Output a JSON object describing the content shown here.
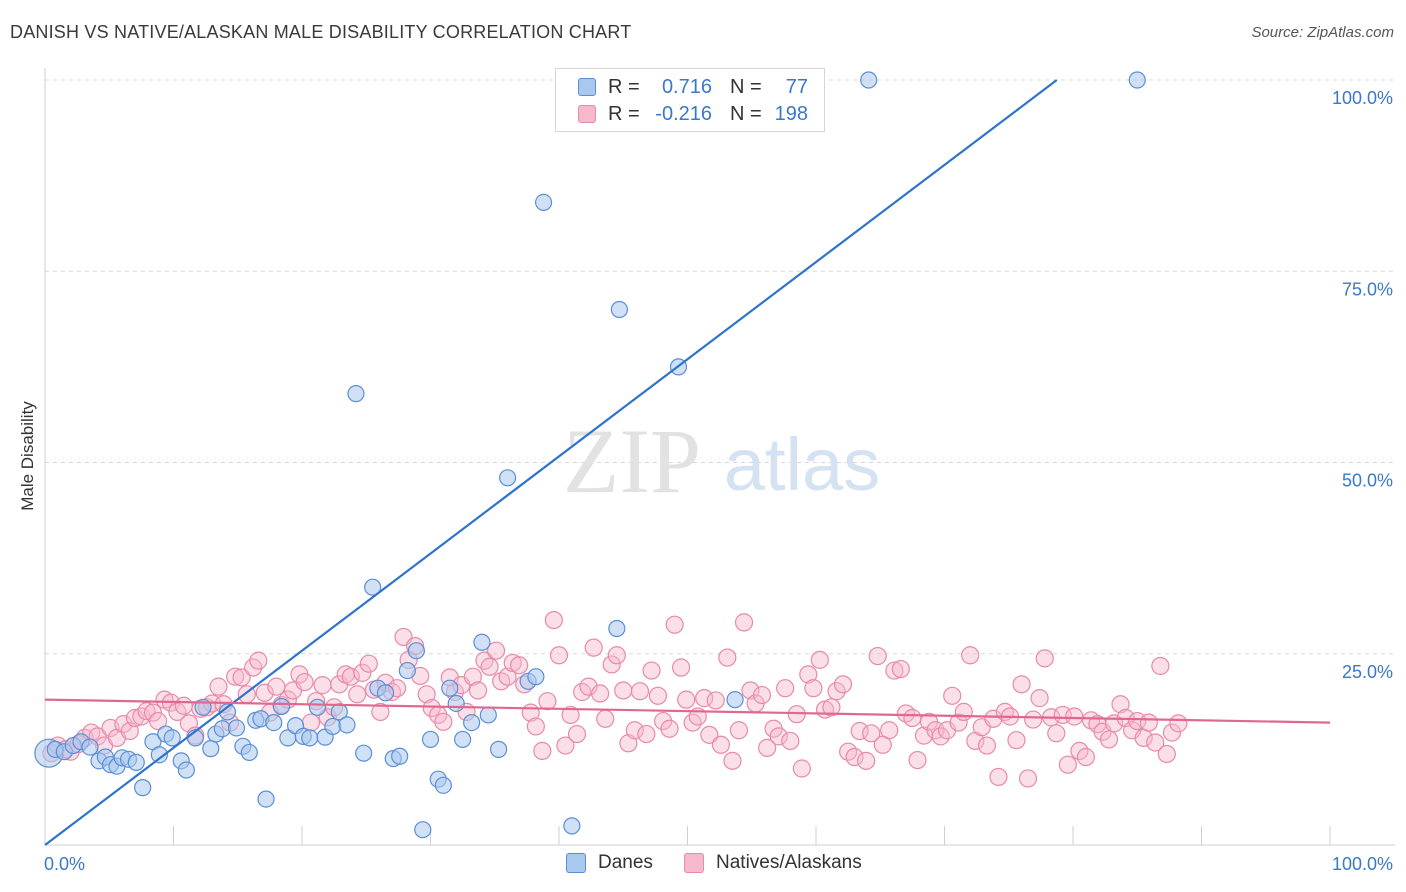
{
  "title": "DANISH VS NATIVE/ALASKAN MALE DISABILITY CORRELATION CHART",
  "source": "Source: ZipAtlas.com",
  "watermark": {
    "zip": "ZIP",
    "atlas": "atlas"
  },
  "colors": {
    "danes_fill": "#a9c8ee",
    "danes_stroke": "#5a8fd6",
    "danes_line": "#2f73cc",
    "natives_fill": "#f6b8cb",
    "natives_stroke": "#e88aa8",
    "natives_line": "#e06890",
    "axis_text": "#3a78c9",
    "grid": "#d8d8d8"
  },
  "legend": {
    "rows": [
      {
        "r_label": "R =",
        "r_value": "0.716",
        "n_label": "N =",
        "n_value": "77"
      },
      {
        "r_label": "R =",
        "r_value": "-0.216",
        "n_label": "N =",
        "n_value": "198"
      }
    ]
  },
  "bottom_legend": {
    "danes": "Danes",
    "natives": "Natives/Alaskans"
  },
  "chart_data": {
    "type": "scatter",
    "title": "DANISH VS NATIVE/ALASKAN MALE DISABILITY CORRELATION CHART",
    "xlabel": "",
    "ylabel": "Male Disability",
    "xlim": [
      0,
      100
    ],
    "ylim": [
      0,
      100
    ],
    "x_tick_labels": [
      "0.0%",
      "100.0%"
    ],
    "y_tick_labels": [
      "25.0%",
      "50.0%",
      "75.0%",
      "100.0%"
    ],
    "y_tick_values": [
      25,
      50,
      75,
      100
    ],
    "grid": true,
    "legend_position": "top-center",
    "series": [
      {
        "name": "Danes",
        "r": 0.716,
        "n": 77,
        "trend": {
          "x": [
            0,
            100
          ],
          "y": [
            0,
            127
          ]
        },
        "points": [
          [
            0.3,
            12.0
          ],
          [
            0.8,
            12.5
          ],
          [
            1.5,
            12.2
          ],
          [
            2.2,
            13.0
          ],
          [
            2.8,
            13.5
          ],
          [
            3.5,
            12.8
          ],
          [
            4.2,
            11.0
          ],
          [
            4.7,
            11.5
          ],
          [
            5.1,
            10.5
          ],
          [
            5.6,
            10.3
          ],
          [
            6.0,
            11.4
          ],
          [
            6.5,
            11.2
          ],
          [
            7.1,
            10.8
          ],
          [
            7.6,
            7.5
          ],
          [
            8.4,
            13.5
          ],
          [
            8.9,
            11.8
          ],
          [
            9.4,
            14.5
          ],
          [
            9.9,
            14.0
          ],
          [
            10.6,
            11.0
          ],
          [
            11.0,
            9.8
          ],
          [
            11.7,
            14.0
          ],
          [
            12.3,
            18.0
          ],
          [
            12.9,
            12.6
          ],
          [
            13.3,
            14.5
          ],
          [
            13.8,
            15.2
          ],
          [
            14.2,
            17.4
          ],
          [
            14.9,
            15.3
          ],
          [
            15.4,
            12.9
          ],
          [
            15.9,
            12.1
          ],
          [
            16.4,
            16.3
          ],
          [
            16.8,
            16.5
          ],
          [
            17.2,
            6.0
          ],
          [
            17.8,
            16.0
          ],
          [
            18.4,
            18.1
          ],
          [
            18.9,
            14.0
          ],
          [
            19.5,
            15.6
          ],
          [
            20.1,
            14.2
          ],
          [
            20.6,
            14.0
          ],
          [
            21.2,
            18.0
          ],
          [
            21.8,
            14.1
          ],
          [
            22.4,
            15.5
          ],
          [
            22.9,
            17.4
          ],
          [
            23.5,
            15.7
          ],
          [
            24.2,
            59.0
          ],
          [
            24.8,
            12.0
          ],
          [
            25.5,
            33.7
          ],
          [
            25.9,
            20.5
          ],
          [
            26.5,
            19.9
          ],
          [
            27.1,
            11.3
          ],
          [
            27.6,
            11.6
          ],
          [
            28.2,
            22.8
          ],
          [
            28.9,
            25.4
          ],
          [
            29.4,
            2.0
          ],
          [
            30.0,
            13.8
          ],
          [
            30.6,
            8.6
          ],
          [
            31.0,
            7.8
          ],
          [
            31.5,
            20.5
          ],
          [
            32.0,
            18.5
          ],
          [
            32.5,
            13.8
          ],
          [
            33.2,
            16.0
          ],
          [
            34.0,
            26.5
          ],
          [
            34.5,
            17.0
          ],
          [
            35.3,
            12.5
          ],
          [
            36.0,
            48.0
          ],
          [
            37.6,
            21.4
          ],
          [
            38.2,
            22.0
          ],
          [
            38.8,
            84.0
          ],
          [
            41.0,
            2.5
          ],
          [
            44.5,
            28.3
          ],
          [
            44.7,
            70.0
          ],
          [
            49.3,
            62.5
          ],
          [
            51.2,
            100.0
          ],
          [
            53.7,
            19.0
          ],
          [
            64.1,
            100.0
          ],
          [
            85.0,
            100.0
          ],
          [
            48.0,
            100.0
          ],
          [
            57.0,
            100.0
          ]
        ]
      },
      {
        "name": "Natives/Alaskans",
        "r": -0.216,
        "n": 198,
        "trend": {
          "x": [
            0,
            100
          ],
          "y": [
            19.0,
            16.0
          ]
        },
        "points": [
          [
            0.5,
            12.0
          ],
          [
            1.0,
            13.0
          ],
          [
            1.6,
            12.5
          ],
          [
            2.0,
            12.2
          ],
          [
            2.6,
            13.2
          ],
          [
            3.1,
            14.0
          ],
          [
            3.6,
            14.7
          ],
          [
            4.1,
            14.2
          ],
          [
            4.6,
            13.0
          ],
          [
            5.1,
            15.3
          ],
          [
            5.6,
            14.0
          ],
          [
            6.1,
            15.8
          ],
          [
            6.6,
            14.9
          ],
          [
            7.0,
            16.6
          ],
          [
            7.5,
            16.8
          ],
          [
            7.9,
            17.5
          ],
          [
            8.4,
            17.3
          ],
          [
            8.8,
            16.2
          ],
          [
            9.3,
            19.0
          ],
          [
            9.8,
            18.6
          ],
          [
            10.3,
            17.4
          ],
          [
            10.8,
            18.2
          ],
          [
            11.2,
            15.9
          ],
          [
            11.7,
            14.3
          ],
          [
            12.1,
            17.8
          ],
          [
            12.6,
            18.0
          ],
          [
            13.0,
            18.5
          ],
          [
            13.5,
            20.7
          ],
          [
            13.9,
            18.4
          ],
          [
            14.4,
            16.0
          ],
          [
            14.8,
            22.0
          ],
          [
            15.3,
            21.9
          ],
          [
            15.7,
            19.7
          ],
          [
            16.2,
            23.2
          ],
          [
            16.6,
            24.1
          ],
          [
            17.1,
            19.9
          ],
          [
            17.5,
            17.3
          ],
          [
            18.0,
            20.7
          ],
          [
            18.4,
            18.3
          ],
          [
            18.9,
            19.0
          ],
          [
            19.3,
            20.2
          ],
          [
            19.8,
            22.3
          ],
          [
            20.2,
            21.3
          ],
          [
            20.7,
            16.0
          ],
          [
            21.1,
            18.8
          ],
          [
            21.6,
            20.9
          ],
          [
            22.0,
            16.7
          ],
          [
            22.5,
            18.0
          ],
          [
            22.9,
            21.0
          ],
          [
            23.4,
            22.3
          ],
          [
            23.8,
            22.0
          ],
          [
            24.3,
            19.7
          ],
          [
            24.7,
            22.5
          ],
          [
            25.2,
            23.7
          ],
          [
            25.6,
            20.3
          ],
          [
            26.1,
            17.4
          ],
          [
            26.5,
            21.2
          ],
          [
            27.0,
            20.0
          ],
          [
            27.4,
            20.5
          ],
          [
            27.9,
            27.2
          ],
          [
            28.3,
            24.2
          ],
          [
            28.8,
            26.0
          ],
          [
            29.2,
            22.1
          ],
          [
            29.7,
            19.7
          ],
          [
            30.1,
            17.9
          ],
          [
            30.6,
            17.0
          ],
          [
            31.0,
            16.1
          ],
          [
            31.5,
            21.9
          ],
          [
            31.9,
            20.0
          ],
          [
            32.4,
            20.9
          ],
          [
            32.8,
            17.4
          ],
          [
            33.3,
            22.0
          ],
          [
            33.7,
            20.2
          ],
          [
            34.2,
            24.1
          ],
          [
            34.6,
            23.3
          ],
          [
            35.1,
            25.4
          ],
          [
            35.5,
            21.4
          ],
          [
            36.0,
            22.0
          ],
          [
            36.4,
            23.8
          ],
          [
            36.9,
            23.5
          ],
          [
            37.3,
            21.0
          ],
          [
            37.8,
            17.3
          ],
          [
            38.2,
            15.5
          ],
          [
            38.7,
            12.3
          ],
          [
            39.1,
            18.8
          ],
          [
            39.6,
            29.4
          ],
          [
            40.0,
            24.8
          ],
          [
            40.5,
            13.0
          ],
          [
            40.9,
            17.0
          ],
          [
            41.4,
            14.5
          ],
          [
            41.8,
            20.0
          ],
          [
            42.3,
            20.7
          ],
          [
            42.7,
            25.8
          ],
          [
            43.2,
            19.8
          ],
          [
            43.6,
            16.5
          ],
          [
            44.1,
            23.6
          ],
          [
            44.5,
            24.8
          ],
          [
            45.0,
            20.2
          ],
          [
            45.4,
            13.3
          ],
          [
            45.9,
            15.0
          ],
          [
            46.3,
            20.1
          ],
          [
            46.8,
            14.5
          ],
          [
            47.2,
            22.8
          ],
          [
            47.7,
            19.5
          ],
          [
            48.1,
            16.2
          ],
          [
            48.6,
            15.2
          ],
          [
            49.0,
            28.8
          ],
          [
            49.5,
            23.2
          ],
          [
            49.9,
            19.0
          ],
          [
            50.4,
            16.0
          ],
          [
            50.8,
            16.8
          ],
          [
            51.3,
            19.2
          ],
          [
            51.7,
            14.4
          ],
          [
            52.2,
            18.9
          ],
          [
            52.6,
            13.1
          ],
          [
            53.1,
            24.5
          ],
          [
            53.5,
            11.0
          ],
          [
            54.0,
            15.0
          ],
          [
            54.4,
            29.1
          ],
          [
            54.9,
            20.2
          ],
          [
            55.3,
            18.5
          ],
          [
            55.8,
            19.6
          ],
          [
            56.2,
            12.7
          ],
          [
            56.7,
            15.2
          ],
          [
            57.1,
            14.2
          ],
          [
            57.6,
            20.5
          ],
          [
            58.0,
            13.6
          ],
          [
            58.5,
            17.1
          ],
          [
            58.9,
            10.0
          ],
          [
            59.4,
            22.3
          ],
          [
            59.8,
            20.5
          ],
          [
            60.3,
            24.2
          ],
          [
            60.7,
            17.7
          ],
          [
            61.2,
            18.0
          ],
          [
            61.6,
            20.1
          ],
          [
            62.1,
            21.0
          ],
          [
            62.5,
            12.2
          ],
          [
            63.0,
            11.5
          ],
          [
            63.4,
            14.9
          ],
          [
            63.9,
            11.0
          ],
          [
            64.3,
            14.6
          ],
          [
            64.8,
            24.7
          ],
          [
            65.2,
            13.1
          ],
          [
            65.7,
            15.0
          ],
          [
            66.1,
            22.8
          ],
          [
            66.6,
            23.0
          ],
          [
            67.0,
            17.2
          ],
          [
            67.5,
            16.6
          ],
          [
            67.9,
            11.1
          ],
          [
            68.4,
            14.3
          ],
          [
            68.8,
            16.1
          ],
          [
            69.3,
            15.0
          ],
          [
            69.7,
            14.2
          ],
          [
            70.2,
            15.0
          ],
          [
            70.6,
            19.5
          ],
          [
            71.1,
            16.0
          ],
          [
            71.5,
            17.4
          ],
          [
            72.0,
            24.8
          ],
          [
            72.4,
            13.6
          ],
          [
            72.9,
            15.4
          ],
          [
            73.3,
            13.0
          ],
          [
            73.8,
            16.5
          ],
          [
            74.2,
            8.9
          ],
          [
            74.7,
            17.4
          ],
          [
            75.1,
            16.8
          ],
          [
            75.6,
            13.7
          ],
          [
            76.0,
            21.0
          ],
          [
            76.5,
            8.7
          ],
          [
            76.9,
            16.4
          ],
          [
            77.4,
            19.2
          ],
          [
            77.8,
            24.4
          ],
          [
            78.3,
            16.7
          ],
          [
            78.7,
            14.6
          ],
          [
            79.2,
            17.0
          ],
          [
            79.6,
            10.5
          ],
          [
            80.1,
            16.8
          ],
          [
            80.5,
            12.3
          ],
          [
            81.0,
            11.5
          ],
          [
            81.4,
            16.3
          ],
          [
            81.9,
            15.8
          ],
          [
            82.3,
            14.8
          ],
          [
            82.8,
            13.8
          ],
          [
            83.2,
            15.9
          ],
          [
            83.7,
            18.4
          ],
          [
            84.1,
            16.6
          ],
          [
            84.6,
            15.0
          ],
          [
            85.0,
            16.2
          ],
          [
            85.5,
            14.0
          ],
          [
            85.9,
            16.0
          ],
          [
            86.4,
            13.4
          ],
          [
            86.8,
            23.4
          ],
          [
            87.3,
            11.9
          ],
          [
            87.7,
            14.7
          ],
          [
            88.2,
            15.9
          ]
        ]
      }
    ]
  }
}
